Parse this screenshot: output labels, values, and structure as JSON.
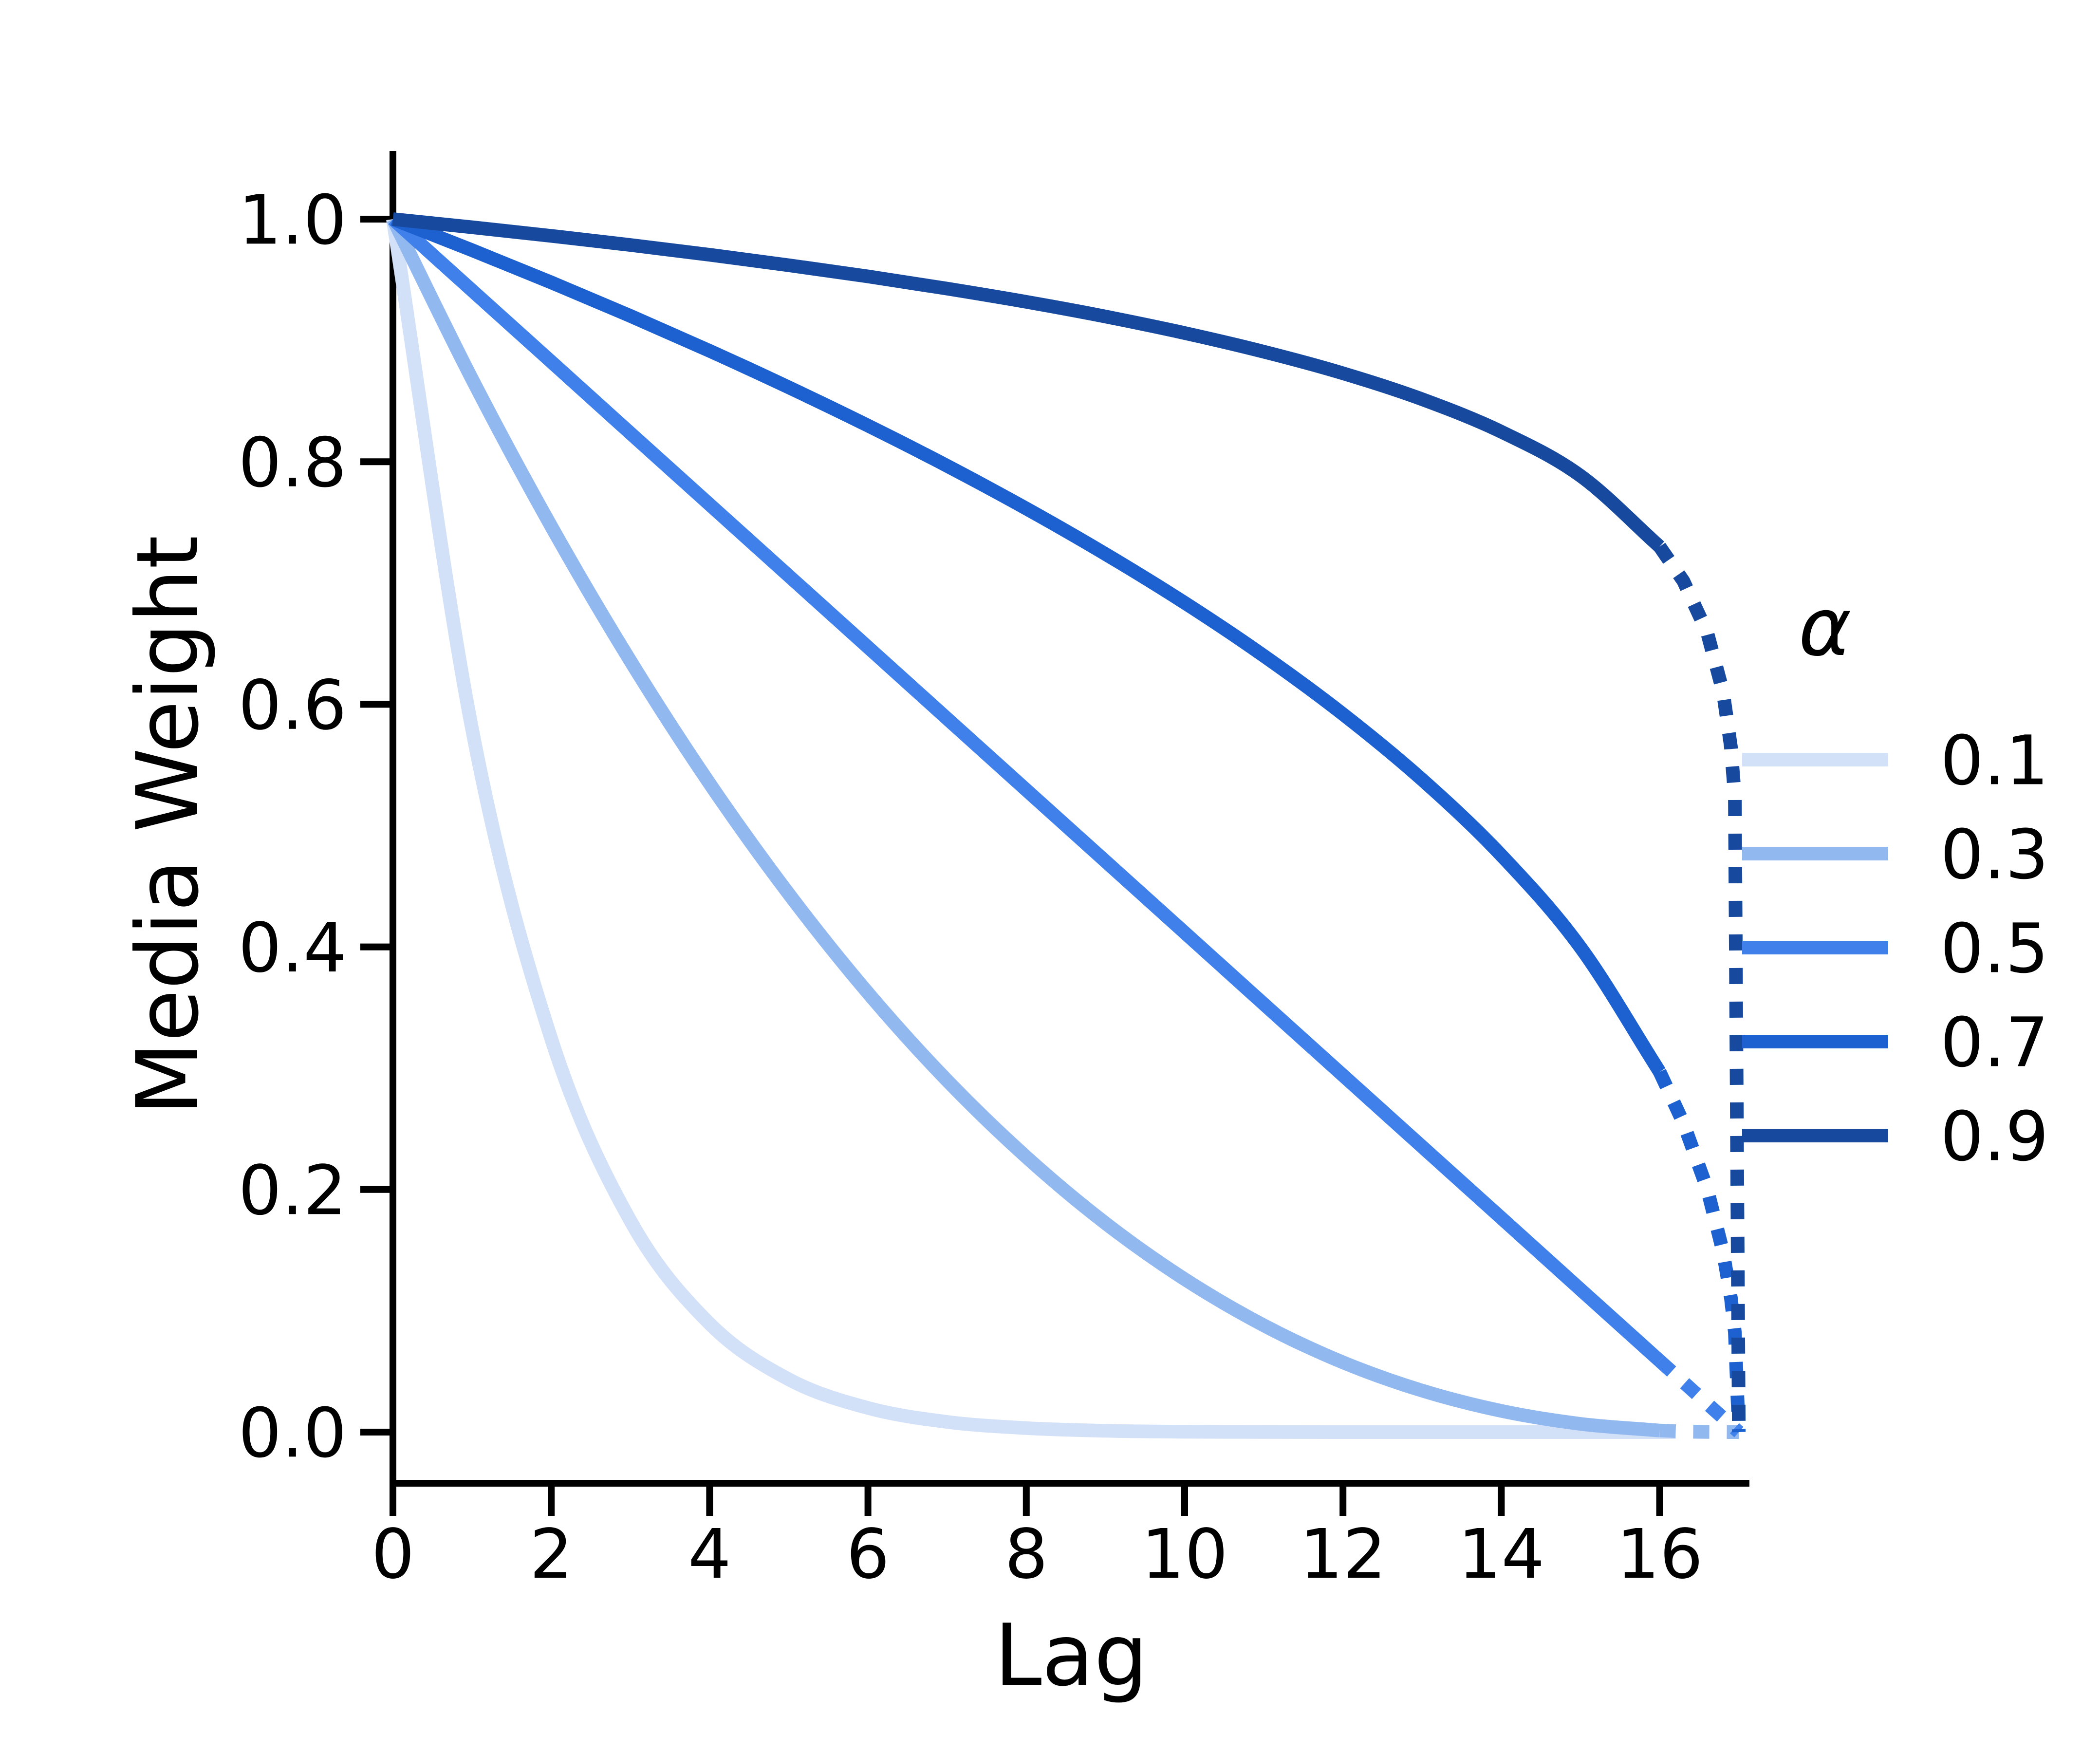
{
  "chart_data": {
    "type": "line",
    "title": "",
    "xlabel": "Lag",
    "ylabel": "Media Weight",
    "legend_title": "α",
    "legend_position": "right",
    "grid": false,
    "xlim": [
      0,
      17.15
    ],
    "ylim": [
      0,
      1.05
    ],
    "x_ticks": [
      0,
      2,
      4,
      6,
      8,
      10,
      12,
      14,
      16
    ],
    "x_tick_labels": [
      "0",
      "2",
      "4",
      "6",
      "8",
      "10",
      "12",
      "14",
      "16"
    ],
    "y_ticks": [
      0.0,
      0.2,
      0.4,
      0.6,
      0.8,
      1.0
    ],
    "y_tick_labels": [
      "0.0",
      "0.2",
      "0.4",
      "0.6",
      "0.8",
      "1.0"
    ],
    "x_solid": [
      0,
      1,
      2,
      3,
      4,
      5,
      6,
      7,
      8,
      9,
      10,
      11,
      12,
      13,
      14,
      15,
      16
    ],
    "x_tail": [
      16,
      16.3,
      16.6,
      16.8,
      16.9,
      16.95,
      17
    ],
    "line_style": {
      "solid_range": [
        0,
        16
      ],
      "dotted_range": [
        16,
        17
      ]
    },
    "series": [
      {
        "name": "0.1",
        "color": "#d2e0f8",
        "values": [
          1,
          0.5795,
          0.3242,
          0.1742,
          0.0894,
          0.0435,
          0.0199,
          0.0084,
          0.0033,
          0.0011,
          0.0003,
          0.0001,
          0,
          0,
          0,
          0,
          0
        ],
        "tail": [
          0,
          0,
          0,
          0,
          0,
          0,
          0
        ]
      },
      {
        "name": "0.3",
        "color": "#92b8f0",
        "values": [
          1,
          0.8681,
          0.7467,
          0.6357,
          0.5347,
          0.4437,
          0.3621,
          0.2899,
          0.2268,
          0.1722,
          0.1261,
          0.088,
          0.0575,
          0.0342,
          0.0175,
          0.0068,
          0.0013
        ],
        "tail": [
          0.0013,
          0.0006,
          0.0002,
          0.0001,
          0,
          0,
          0
        ]
      },
      {
        "name": "0.5",
        "color": "#4080eb",
        "values": [
          1,
          0.9412,
          0.8824,
          0.8235,
          0.7647,
          0.7059,
          0.6471,
          0.5882,
          0.5294,
          0.4706,
          0.4118,
          0.3529,
          0.2941,
          0.2353,
          0.1765,
          0.1176,
          0.0588
        ],
        "tail": [
          0.0588,
          0.0412,
          0.0235,
          0.0118,
          0.0059,
          0.0029,
          0
        ]
      },
      {
        "name": "0.7",
        "color": "#1d61d1",
        "values": [
          1,
          0.9744,
          0.9478,
          0.9202,
          0.8914,
          0.8613,
          0.8298,
          0.7966,
          0.7614,
          0.7239,
          0.6837,
          0.64,
          0.5919,
          0.5379,
          0.4755,
          0.3996,
          0.297
        ],
        "tail": [
          0.297,
          0.2548,
          0.2006,
          0.1489,
          0.1107,
          0.0822,
          0
        ]
      },
      {
        "name": "0.9",
        "color": "#174a9f",
        "values": [
          1,
          0.9933,
          0.9862,
          0.9787,
          0.9706,
          0.962,
          0.9528,
          0.9427,
          0.9318,
          0.9197,
          0.9061,
          0.8907,
          0.8729,
          0.8515,
          0.8247,
          0.7884,
          0.73
        ],
        "tail": [
          0.73,
          0.7016,
          0.6593,
          0.6104,
          0.5651,
          0.5232,
          0
        ]
      }
    ]
  }
}
